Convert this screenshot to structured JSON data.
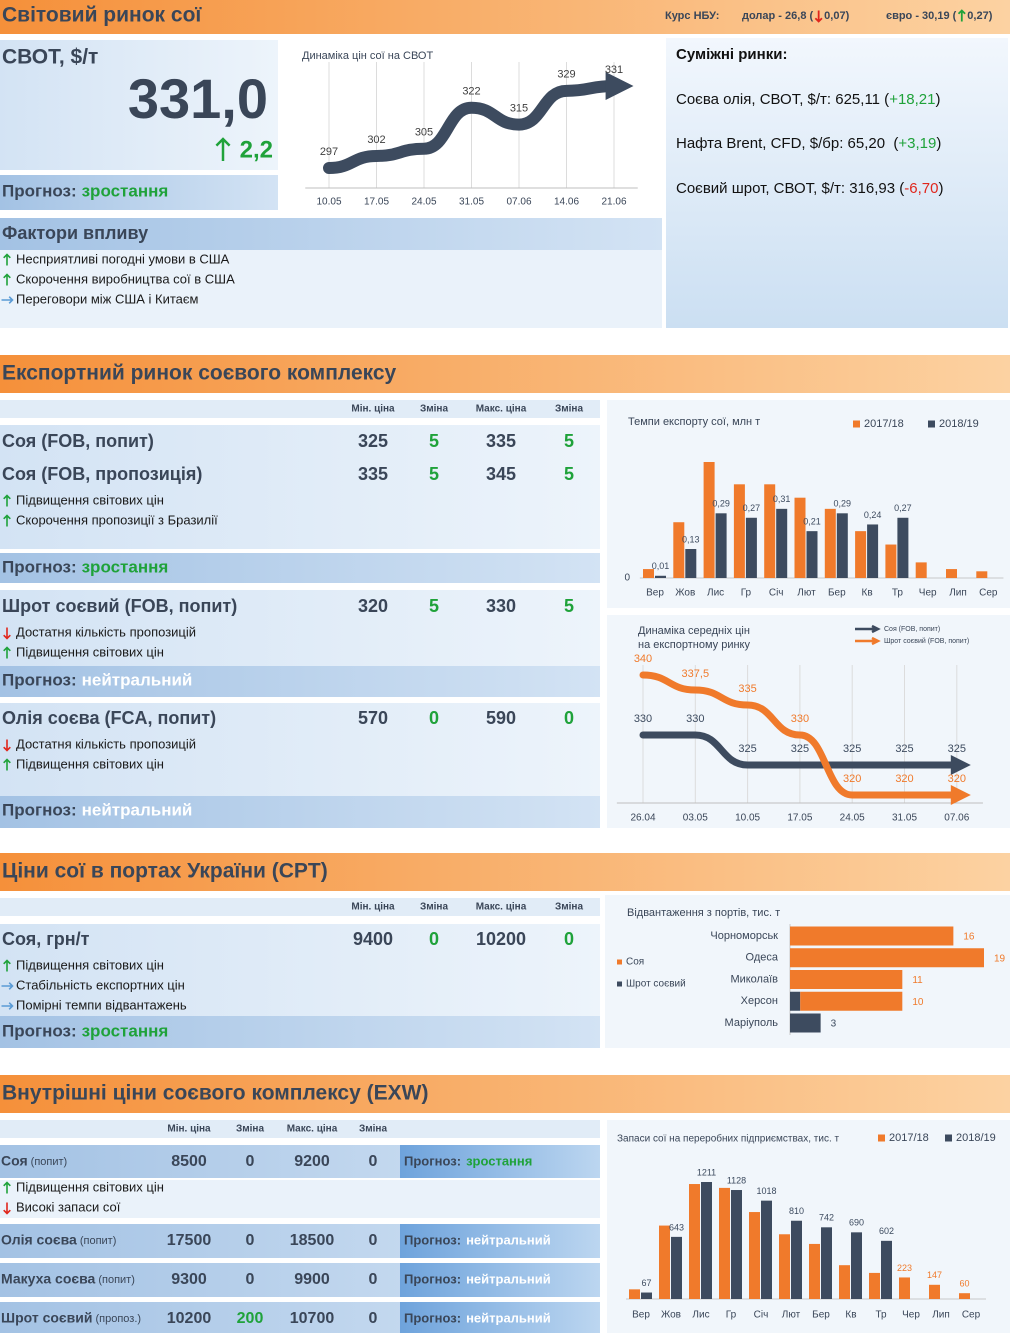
{
  "header": {
    "title": "Світовий ринок сої",
    "rates_label": "Курс НБУ:",
    "rates": [
      {
        "label": "долар - 26,8 (",
        "change": "0,07",
        "close": ")",
        "trend": "down"
      },
      {
        "label": "євро - 30,19 (",
        "change": "0,27",
        "close": ")",
        "trend": "up"
      }
    ]
  },
  "forecast_label": "Прогноз:",
  "svot": {
    "title": "СВОТ, $/т",
    "price": "331,0",
    "change": "2,2",
    "trend": "up",
    "forecast": {
      "text": "зростання",
      "color": "#1fa23a"
    }
  },
  "adjacent": {
    "title": "Суміжні ринки:",
    "items": [
      {
        "label": "Соєва олія, СВОТ, $/т: 625,11 (",
        "change": "+18,21",
        "close": ")",
        "color": "#1fa23a"
      },
      {
        "label": "Нафта Brent, CFD, $/бр: 65,20  (",
        "change": "+3,19",
        "close": ")",
        "color": "#1fa23a"
      },
      {
        "label": "Соєвий шрот, СВОТ, $/т: 316,93 (",
        "change": "-6,70",
        "close": ")",
        "color": "#e0261c"
      }
    ]
  },
  "factors": {
    "title": "Фактори впливу",
    "items": [
      {
        "text": "Несприятливі погодні умови в США",
        "trend": "up"
      },
      {
        "text": "Скорочення виробництва сої в США",
        "trend": "up"
      },
      {
        "text": "Переговори між США і Китаєм",
        "trend": "side"
      }
    ]
  },
  "sections": [
    {
      "title": "Експортний ринок соєвого комплексу",
      "columns": [
        "Мін. ціна",
        "Зміна",
        "Макс. ціна",
        "Зміна"
      ],
      "change_color": "#1fa23a",
      "groups": [
        {
          "rows": [
            {
              "name": "Соя (FOB, попит)",
              "cells": [
                325,
                5,
                335,
                5
              ]
            },
            {
              "name": "Соя (FOB, пропозиція)",
              "cells": [
                335,
                5,
                345,
                5
              ]
            }
          ],
          "factors": [
            {
              "text": "Підвищення світових цін",
              "trend": "up"
            },
            {
              "text": "Скорочення пропозиції з Бразилії",
              "trend": "up"
            }
          ],
          "forecast": {
            "text": "зростання",
            "color": "#1fa23a"
          }
        },
        {
          "rows": [
            {
              "name": "Шрот соєвий (FOB, попит)",
              "cells": [
                320,
                5,
                330,
                5
              ]
            }
          ],
          "factors": [
            {
              "text": "Достатня кількість пропозицій",
              "trend": "down"
            },
            {
              "text": "Підвищення світових цін",
              "trend": "up"
            }
          ],
          "forecast": {
            "text": "нейтральний",
            "color": "#ffffff"
          }
        },
        {
          "rows": [
            {
              "name": "Олія соєва (FCA, попит)",
              "cells": [
                570,
                0,
                590,
                0
              ]
            }
          ],
          "factors": [
            {
              "text": "Достатня кількість пропозицій",
              "trend": "down"
            },
            {
              "text": "Підвищення світових цін",
              "trend": "up"
            }
          ],
          "forecast": {
            "text": "нейтральний",
            "color": "#ffffff"
          }
        }
      ]
    },
    {
      "title": "Ціни сої в портах України (CPT)",
      "columns": [
        "Мін. ціна",
        "Зміна",
        "Макс. ціна",
        "Зміна"
      ],
      "change_color": "#1fa23a",
      "groups": [
        {
          "rows": [
            {
              "name": "Соя, грн/т",
              "cells": [
                9400,
                0,
                10200,
                0
              ]
            }
          ],
          "factors": [
            {
              "text": "Підвищення світових цін",
              "trend": "up"
            },
            {
              "text": "Стабільність експортних цін",
              "trend": "side"
            },
            {
              "text": "Помірні темпи відвантажень",
              "trend": "side"
            }
          ],
          "forecast": {
            "text": "зростання",
            "color": "#1fa23a"
          }
        }
      ]
    },
    {
      "title": "Внутрішні ціни соєвого комплексу (EXW)",
      "columns": [
        "Мін. ціна",
        "Зміна",
        "Макс. ціна",
        "Зміна"
      ],
      "rows": [
        {
          "name": "Соя",
          "note": "(попит)",
          "cells": [
            8500,
            0,
            9200,
            0
          ],
          "change_colors": [
            "#3a4658",
            "#3a4658"
          ],
          "forecast": {
            "text": "зростання",
            "color": "#1fa23a"
          },
          "factors": [
            {
              "text": "Підвищення світових цін",
              "trend": "up"
            },
            {
              "text": "Високі запаси сої",
              "trend": "down"
            }
          ]
        },
        {
          "name": "Олія соєва",
          "note": "(попит)",
          "cells": [
            17500,
            0,
            18500,
            0
          ],
          "change_colors": [
            "#3a4658",
            "#3a4658"
          ],
          "forecast": {
            "text": "нейтральний",
            "color": "#ffffff"
          }
        },
        {
          "name": "Макуха соєва",
          "note": "(попит)",
          "cells": [
            9300,
            0,
            9900,
            0
          ],
          "change_colors": [
            "#3a4658",
            "#3a4658"
          ],
          "forecast": {
            "text": "нейтральний",
            "color": "#ffffff"
          }
        },
        {
          "name": "Шрот соєвий",
          "note": "(пропоз.)",
          "cells": [
            10200,
            200,
            10700,
            0
          ],
          "change_colors": [
            "#1fa23a",
            "#3a4658"
          ],
          "forecast": {
            "text": "нейтральний",
            "color": "#ffffff"
          }
        }
      ]
    }
  ],
  "chart_data": [
    {
      "type": "line",
      "title": "Динаміка цін сої на СВОТ",
      "categories": [
        "10.05",
        "17.05",
        "24.05",
        "31.05",
        "07.06",
        "14.06",
        "21.06"
      ],
      "values": [
        297,
        302,
        305,
        322,
        315,
        329,
        331
      ],
      "value_labels": [
        "297",
        "302",
        "305",
        "322",
        "315",
        "329",
        "331"
      ],
      "color": "#3d4b5f"
    },
    {
      "type": "bar",
      "title": "Темпи експорту сої, млн т",
      "legend": "top-right",
      "categories": [
        "Вер",
        "Жов",
        "Лис",
        "Гр",
        "Січ",
        "Лют",
        "Бер",
        "Кв",
        "Тр",
        "Чер",
        "Лип",
        "Сер"
      ],
      "yticks": [
        0
      ],
      "series": [
        {
          "name": "2017/18",
          "color": "#f07a2b",
          "values": [
            0.04,
            0.25,
            0.52,
            0.42,
            0.42,
            0.36,
            0.31,
            0.21,
            0.15,
            0.07,
            0.04,
            0.03
          ]
        },
        {
          "name": "2018/19",
          "color": "#3d4b5f",
          "values": [
            0.01,
            0.13,
            0.29,
            0.27,
            0.31,
            0.21,
            0.29,
            0.24,
            0.27,
            null,
            null,
            null
          ],
          "value_labels": [
            "0,01",
            "0,13",
            "0,29",
            "0,27",
            "0,31",
            "0,21",
            "0,29",
            "0,24",
            "0,27",
            null,
            null,
            null
          ]
        }
      ]
    },
    {
      "type": "line",
      "title": [
        "Динаміка середніх цін",
        "на експортному ринку"
      ],
      "legend": "top-right",
      "categories": [
        "26.04",
        "03.05",
        "10.05",
        "17.05",
        "24.05",
        "31.05",
        "07.06"
      ],
      "series": [
        {
          "name": "Соя (FOB, попит)",
          "color": "#3d4b5f",
          "values": [
            330,
            330,
            325,
            325,
            325,
            325,
            325
          ],
          "value_labels": [
            "330",
            "330",
            "325",
            "325",
            "325",
            "325",
            "325"
          ]
        },
        {
          "name": "Шрот соєвий (FOB, попит)",
          "color": "#f07a2b",
          "values": [
            340,
            337.5,
            335,
            330,
            320,
            320,
            320
          ],
          "value_labels": [
            "340",
            "337,5",
            "335",
            "330",
            "320",
            "320",
            "320"
          ]
        }
      ]
    },
    {
      "type": "hbar",
      "title": "Відвантаження з портів, тис. т",
      "legend": "left",
      "stacked": true,
      "categories": [
        "Чорноморськ",
        "Одеса",
        "Миколаїв",
        "Херсон",
        "Маріуполь"
      ],
      "series": [
        {
          "name": "Соя",
          "color": "#f07a2b",
          "values": [
            16,
            19,
            11,
            10,
            null
          ],
          "value_labels": [
            "16",
            "19",
            "11",
            "10",
            null
          ]
        },
        {
          "name": "Шрот соєвий",
          "color": "#3d4b5f",
          "values": [
            null,
            null,
            null,
            1,
            3
          ],
          "value_labels": [
            null,
            null,
            null,
            "1",
            "3"
          ]
        }
      ]
    },
    {
      "type": "bar",
      "title": "Запаси сої на переробних підприємствах, тис. т",
      "legend": "top-right",
      "categories": [
        "Вер",
        "Жов",
        "Лис",
        "Гр",
        "Січ",
        "Лют",
        "Бер",
        "Кв",
        "Тр",
        "Чер",
        "Лип",
        "Сер"
      ],
      "series": [
        {
          "name": "2017/18",
          "color": "#f07a2b",
          "values": [
            100,
            760,
            1190,
            1150,
            900,
            670,
            570,
            350,
            270,
            223,
            147,
            60
          ],
          "value_labels": [
            null,
            null,
            null,
            null,
            null,
            null,
            null,
            null,
            null,
            "223",
            "147",
            "60"
          ]
        },
        {
          "name": "2018/19",
          "color": "#3d4b5f",
          "values": [
            67,
            643,
            1211,
            1128,
            1018,
            810,
            742,
            690,
            602,
            null,
            null,
            null
          ],
          "value_labels": [
            "67",
            "643",
            "1211",
            "1128",
            "1018",
            "810",
            "742",
            "690",
            "602",
            null,
            null,
            null
          ]
        }
      ]
    }
  ]
}
